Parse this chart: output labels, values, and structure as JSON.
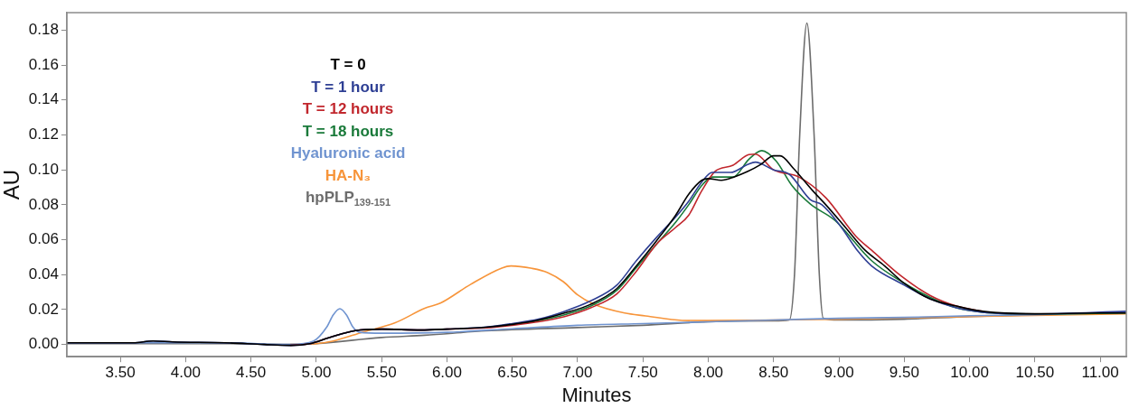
{
  "chart_data": {
    "type": "line",
    "xlabel": "Minutes",
    "ylabel": "AU",
    "xlim": [
      3.09,
      11.2
    ],
    "ylim": [
      -0.007,
      0.19
    ],
    "xticks": [
      {
        "value": 3.5,
        "label": "3.50"
      },
      {
        "value": 4,
        "label": "4.00"
      },
      {
        "value": 4.5,
        "label": "4.50"
      },
      {
        "value": 5,
        "label": "5.00"
      },
      {
        "value": 5.5,
        "label": "5.50"
      },
      {
        "value": 6,
        "label": "6.00"
      },
      {
        "value": 6.5,
        "label": "6.50"
      },
      {
        "value": 7,
        "label": "7.00"
      },
      {
        "value": 7.5,
        "label": "7.50"
      },
      {
        "value": 8,
        "label": "8.00"
      },
      {
        "value": 8.5,
        "label": "8.50"
      },
      {
        "value": 9,
        "label": "9.00"
      },
      {
        "value": 9.5,
        "label": "9.50"
      },
      {
        "value": 10,
        "label": "10.00"
      },
      {
        "value": 10.5,
        "label": "10.50"
      },
      {
        "value": 11,
        "label": "11.00"
      }
    ],
    "yticks": [
      {
        "value": 0,
        "label": "0.00"
      },
      {
        "value": 0.02,
        "label": "0.02"
      },
      {
        "value": 0.04,
        "label": "0.04"
      },
      {
        "value": 0.06,
        "label": "0.06"
      },
      {
        "value": 0.08,
        "label": "0.08"
      },
      {
        "value": 0.1,
        "label": "0.10"
      },
      {
        "value": 0.12,
        "label": "0.12"
      },
      {
        "value": 0.14,
        "label": "0.14"
      },
      {
        "value": 0.16,
        "label": "0.16"
      },
      {
        "value": 0.18,
        "label": "0.18"
      }
    ],
    "grid": false,
    "legend": "top left",
    "line_style": "solid",
    "series": [
      {
        "name": "T = 0",
        "color": "#000000",
        "x": [
          3.09,
          3.6,
          3.75,
          3.9,
          4.3,
          4.6,
          4.8,
          4.95,
          5.1,
          5.3,
          5.5,
          5.8,
          6.0,
          6.3,
          6.5,
          6.7,
          6.9,
          7.1,
          7.3,
          7.45,
          7.6,
          7.75,
          7.85,
          7.95,
          8.0,
          8.1,
          8.2,
          8.3,
          8.4,
          8.5,
          8.55,
          8.65,
          8.8,
          8.9,
          9.05,
          9.2,
          9.35,
          9.5,
          9.7,
          9.9,
          10.1,
          10.5,
          11.0,
          11.2
        ],
        "values": [
          0.001,
          0.001,
          0.002,
          0.0015,
          0.001,
          0.0,
          -0.0005,
          0.0005,
          0.004,
          0.008,
          0.0088,
          0.0083,
          0.0088,
          0.0099,
          0.0115,
          0.014,
          0.018,
          0.023,
          0.032,
          0.045,
          0.059,
          0.074,
          0.086,
          0.094,
          0.095,
          0.094,
          0.096,
          0.099,
          0.103,
          0.108,
          0.108,
          0.101,
          0.088,
          0.08,
          0.067,
          0.054,
          0.045,
          0.035,
          0.026,
          0.022,
          0.019,
          0.0176,
          0.018,
          0.018
        ]
      },
      {
        "name": "T = 1 hour",
        "color": "#2e3f94",
        "x": [
          3.09,
          3.6,
          3.75,
          3.9,
          4.3,
          4.6,
          4.8,
          4.95,
          5.1,
          5.3,
          5.5,
          5.8,
          6.0,
          6.3,
          6.5,
          6.7,
          6.9,
          7.1,
          7.3,
          7.45,
          7.6,
          7.75,
          7.85,
          7.95,
          8.03,
          8.17,
          8.3,
          8.36,
          8.5,
          8.62,
          8.78,
          8.87,
          9.0,
          9.15,
          9.25,
          9.5,
          9.7,
          9.9,
          10.1,
          10.5,
          11.2
        ],
        "values": [
          0.001,
          0.001,
          0.002,
          0.0015,
          0.001,
          0.0,
          -0.0005,
          0.0005,
          0.004,
          0.008,
          0.0088,
          0.0083,
          0.0088,
          0.01,
          0.012,
          0.0145,
          0.019,
          0.025,
          0.034,
          0.048,
          0.061,
          0.073,
          0.082,
          0.093,
          0.0985,
          0.0985,
          0.103,
          0.1044,
          0.1,
          0.0975,
          0.083,
          0.08,
          0.069,
          0.053,
          0.045,
          0.034,
          0.026,
          0.021,
          0.0185,
          0.0175,
          0.019
        ]
      },
      {
        "name": "T = 12 hours",
        "color": "#c1272d",
        "x": [
          4.8,
          4.95,
          5.1,
          5.3,
          5.5,
          5.8,
          6.0,
          6.3,
          6.5,
          6.7,
          6.9,
          7.1,
          7.3,
          7.45,
          7.61,
          7.75,
          7.85,
          7.95,
          8.05,
          8.19,
          8.31,
          8.36,
          8.5,
          8.69,
          8.9,
          9.13,
          9.25,
          9.48,
          9.7,
          9.9,
          10.1
        ],
        "values": [
          -0.0005,
          0.0005,
          0.004,
          0.008,
          0.0088,
          0.0083,
          0.0088,
          0.0095,
          0.011,
          0.013,
          0.016,
          0.021,
          0.029,
          0.042,
          0.058,
          0.067,
          0.074,
          0.088,
          0.099,
          0.1027,
          0.1087,
          0.109,
          0.1,
          0.096,
          0.084,
          0.062,
          0.054,
          0.039,
          0.028,
          0.022,
          0.019
        ]
      },
      {
        "name": "T = 18 hours",
        "color": "#1a7a3a",
        "x": [
          6.5,
          6.7,
          6.9,
          7.1,
          7.3,
          7.45,
          7.61,
          7.75,
          7.85,
          7.95,
          8.03,
          8.19,
          8.31,
          8.41,
          8.52,
          8.64,
          8.78,
          8.97,
          9.25,
          9.48,
          9.7,
          9.9,
          10.1,
          10.5,
          11.2
        ],
        "values": [
          0.0113,
          0.0137,
          0.017,
          0.022,
          0.031,
          0.044,
          0.058,
          0.07,
          0.08,
          0.091,
          0.0959,
          0.0959,
          0.106,
          0.111,
          0.105,
          0.091,
          0.0805,
          0.071,
          0.048,
          0.036,
          0.027,
          0.021,
          0.0185,
          0.0175,
          0.018
        ]
      },
      {
        "name": "Hyaluronic acid",
        "color": "#7094d0",
        "x": [
          3.09,
          3.6,
          4.3,
          4.8,
          4.98,
          5.08,
          5.13,
          5.18,
          5.23,
          5.28,
          5.33,
          5.5,
          6.0,
          6.5,
          7.0,
          7.5,
          8.0,
          8.5,
          9.0,
          9.5,
          10.0,
          10.5,
          11.2
        ],
        "values": [
          0.001,
          0.001,
          0.001,
          0.0,
          0.002,
          0.01,
          0.017,
          0.0205,
          0.017,
          0.01,
          0.007,
          0.0065,
          0.007,
          0.009,
          0.011,
          0.012,
          0.013,
          0.014,
          0.015,
          0.0155,
          0.0165,
          0.017,
          0.0185
        ]
      },
      {
        "name": "HA-N₃",
        "color": "#f7953b",
        "x": [
          4.8,
          5.0,
          5.13,
          5.36,
          5.6,
          5.83,
          5.95,
          6.18,
          6.42,
          6.49,
          6.65,
          6.77,
          6.89,
          7.0,
          7.12,
          7.36,
          7.52,
          7.8,
          8.0,
          8.5,
          9.0,
          10.0,
          11.2
        ],
        "values": [
          0.0,
          0.0005,
          0.002,
          0.0072,
          0.0123,
          0.0207,
          0.0237,
          0.0344,
          0.0438,
          0.045,
          0.0436,
          0.0412,
          0.036,
          0.0284,
          0.0232,
          0.018,
          0.0164,
          0.0138,
          0.0137,
          0.014,
          0.0145,
          0.016,
          0.0175
        ]
      },
      {
        "name": "hpPLP$_{139-151}$",
        "color": "#6d6d6d",
        "x": [
          3.09,
          4.3,
          4.8,
          5.0,
          5.5,
          5.83,
          6.3,
          7.0,
          7.5,
          8.0,
          8.5,
          8.62,
          8.66,
          8.7,
          8.755,
          8.81,
          8.85,
          8.88,
          9.0,
          9.5,
          10.0,
          10.5,
          11.2
        ],
        "values": [
          0.0005,
          0.0005,
          0.0,
          0.0005,
          0.004,
          0.0053,
          0.0078,
          0.0097,
          0.011,
          0.013,
          0.0135,
          0.014,
          0.04,
          0.12,
          0.184,
          0.12,
          0.04,
          0.015,
          0.014,
          0.0145,
          0.016,
          0.017,
          0.018
        ]
      }
    ]
  }
}
